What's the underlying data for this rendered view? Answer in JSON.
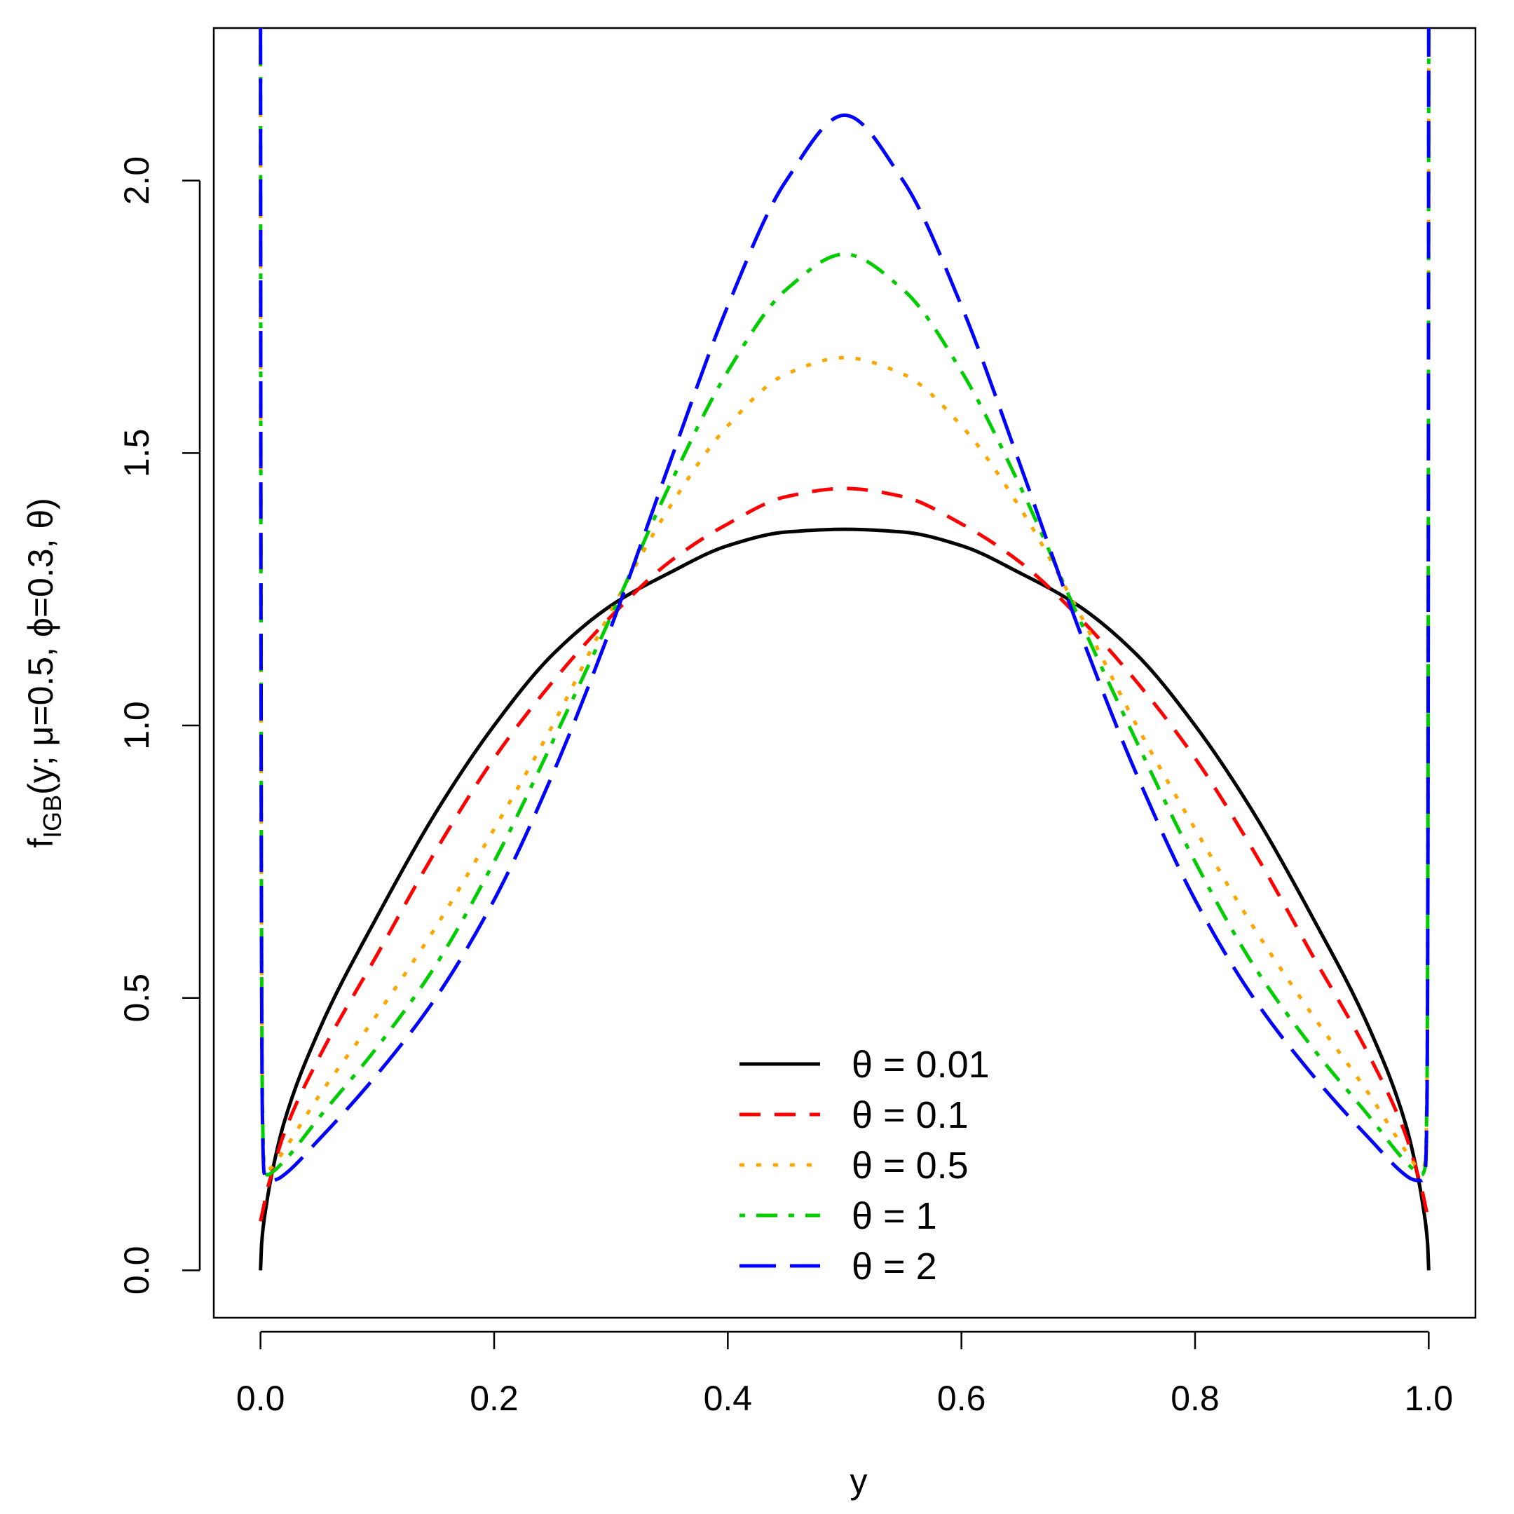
{
  "chart_data": {
    "type": "line",
    "title": "",
    "xlabel": "y",
    "ylabel": {
      "main": "f",
      "sub": "IGB",
      "args": "(y; μ=0.5, ϕ=0.3, θ)"
    },
    "xlim": [
      -0.04,
      1.04
    ],
    "ylim": [
      -0.087,
      2.28
    ],
    "x_ticks": [
      0.0,
      0.2,
      0.4,
      0.6,
      0.8,
      1.0
    ],
    "x_tick_labels": [
      "0.0",
      "0.2",
      "0.4",
      "0.6",
      "0.8",
      "1.0"
    ],
    "y_ticks": [
      0.0,
      0.5,
      1.0,
      1.5,
      2.0
    ],
    "y_tick_labels": [
      "0.0",
      "0.5",
      "1.0",
      "1.5",
      "2.0"
    ],
    "grid": false,
    "legend_position": "bottom-center",
    "series": [
      {
        "name": "θ = 0.01",
        "theta": 0.01,
        "color": "#000000",
        "dash": "solid",
        "x": [
          0.0,
          0.001,
          0.005,
          0.01,
          0.02,
          0.05,
          0.1,
          0.15,
          0.2,
          0.25,
          0.3,
          0.35,
          0.4,
          0.45,
          0.5,
          0.55,
          0.6,
          0.65,
          0.7,
          0.75,
          0.8,
          0.85,
          0.9,
          0.95,
          0.98,
          0.99,
          0.995,
          0.999,
          1.0
        ],
        "y": [
          0.0,
          0.05,
          0.12,
          0.18,
          0.27,
          0.44,
          0.65,
          0.84,
          1.0,
          1.13,
          1.22,
          1.28,
          1.33,
          1.355,
          1.36,
          1.355,
          1.33,
          1.28,
          1.22,
          1.13,
          1.0,
          0.84,
          0.65,
          0.44,
          0.27,
          0.18,
          0.12,
          0.05,
          0.0
        ]
      },
      {
        "name": "θ = 0.1",
        "theta": 0.1,
        "color": "#ff0000",
        "dash": "dashed",
        "x": [
          0.0,
          0.001,
          0.003,
          0.006,
          0.01,
          0.02,
          0.05,
          0.1,
          0.15,
          0.2,
          0.25,
          0.3,
          0.35,
          0.4,
          0.45,
          0.5,
          0.55,
          0.6,
          0.65,
          0.7,
          0.75,
          0.8,
          0.85,
          0.9,
          0.95,
          0.98,
          0.99,
          0.994,
          0.997,
          0.999,
          1.0
        ],
        "y": [
          0.09,
          0.1,
          0.12,
          0.15,
          0.18,
          0.25,
          0.39,
          0.58,
          0.77,
          0.94,
          1.08,
          1.2,
          1.3,
          1.37,
          1.42,
          1.435,
          1.42,
          1.37,
          1.3,
          1.2,
          1.08,
          0.94,
          0.77,
          0.58,
          0.39,
          0.25,
          0.18,
          0.15,
          0.12,
          0.1,
          0.09
        ]
      },
      {
        "name": "θ = 0.5",
        "theta": 0.5,
        "color": "#ffa500",
        "dash": "dotted",
        "x": [
          0.0,
          0.0003,
          0.0008,
          0.0015,
          0.003,
          0.006,
          0.01,
          0.02,
          0.05,
          0.1,
          0.15,
          0.2,
          0.25,
          0.3,
          0.35,
          0.4,
          0.45,
          0.5,
          0.55,
          0.6,
          0.65,
          0.7,
          0.75,
          0.8,
          0.85,
          0.9,
          0.95,
          0.98,
          0.99,
          0.994,
          0.997,
          0.9985,
          0.9992,
          0.9997,
          1.0
        ],
        "y": [
          2.28,
          1.4,
          0.7,
          0.35,
          0.2,
          0.185,
          0.19,
          0.22,
          0.32,
          0.47,
          0.63,
          0.81,
          1.0,
          1.21,
          1.4,
          1.55,
          1.645,
          1.675,
          1.645,
          1.55,
          1.4,
          1.21,
          1.0,
          0.81,
          0.63,
          0.47,
          0.32,
          0.22,
          0.19,
          0.185,
          0.2,
          0.35,
          0.7,
          1.4,
          2.28
        ]
      },
      {
        "name": "θ = 1",
        "theta": 1,
        "color": "#00cd00",
        "dash": "dotdash",
        "x": [
          0.0,
          0.0003,
          0.0008,
          0.0015,
          0.003,
          0.006,
          0.01,
          0.02,
          0.05,
          0.1,
          0.15,
          0.2,
          0.25,
          0.3,
          0.35,
          0.4,
          0.45,
          0.5,
          0.55,
          0.6,
          0.65,
          0.7,
          0.75,
          0.8,
          0.85,
          0.9,
          0.95,
          0.98,
          0.99,
          0.994,
          0.997,
          0.9985,
          0.9992,
          0.9997,
          1.0
        ],
        "y": [
          2.28,
          1.4,
          0.7,
          0.33,
          0.19,
          0.175,
          0.18,
          0.2,
          0.28,
          0.41,
          0.56,
          0.75,
          0.97,
          1.2,
          1.44,
          1.65,
          1.8,
          1.865,
          1.8,
          1.65,
          1.44,
          1.2,
          0.97,
          0.75,
          0.56,
          0.41,
          0.28,
          0.2,
          0.18,
          0.175,
          0.19,
          0.33,
          0.7,
          1.4,
          2.28
        ]
      },
      {
        "name": "θ = 2",
        "theta": 2,
        "color": "#0000ff",
        "dash": "longdash",
        "x": [
          0.0,
          0.0003,
          0.0008,
          0.0015,
          0.003,
          0.006,
          0.01,
          0.015,
          0.02,
          0.05,
          0.1,
          0.15,
          0.2,
          0.25,
          0.3,
          0.35,
          0.4,
          0.45,
          0.5,
          0.55,
          0.6,
          0.65,
          0.7,
          0.75,
          0.8,
          0.85,
          0.9,
          0.95,
          0.98,
          0.985,
          0.99,
          0.994,
          0.997,
          0.9985,
          0.9992,
          0.9997,
          1.0
        ],
        "y": [
          2.28,
          1.4,
          0.65,
          0.3,
          0.18,
          0.165,
          0.165,
          0.168,
          0.175,
          0.24,
          0.36,
          0.5,
          0.68,
          0.91,
          1.18,
          1.48,
          1.77,
          2.0,
          2.12,
          2.0,
          1.77,
          1.48,
          1.18,
          0.91,
          0.68,
          0.5,
          0.36,
          0.24,
          0.175,
          0.168,
          0.165,
          0.165,
          0.18,
          0.3,
          0.65,
          1.4,
          2.28
        ]
      }
    ]
  }
}
